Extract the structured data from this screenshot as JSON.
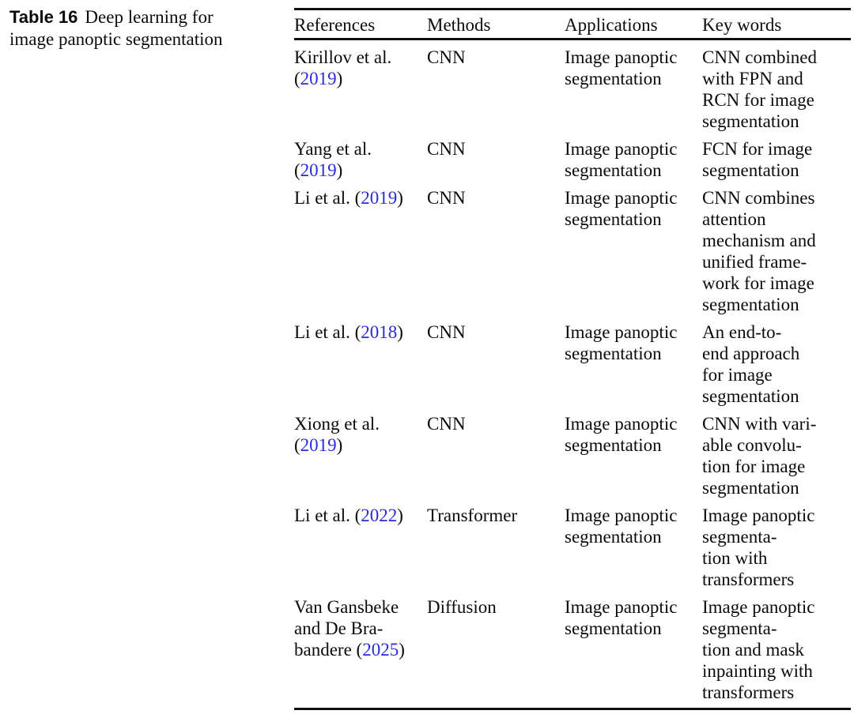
{
  "caption": {
    "label": "Table 16",
    "text": "Deep learning for\nimage panoptic segmentation"
  },
  "colors": {
    "text": "#0b0b0b",
    "rule": "#111111",
    "citation_link_blue": "#2a2ae0",
    "background": "#ffffff"
  },
  "table": {
    "columns": [
      "References",
      "Methods",
      "Applications",
      "Key words"
    ],
    "rows": [
      {
        "ref_pre": "Kirillov et al.\n(",
        "year": "2019",
        "ref_post": ")",
        "method": "CNN",
        "application": "Image panoptic\nsegmentation",
        "keywords": "CNN combined\nwith FPN and\nRCN for image\nsegmentation"
      },
      {
        "ref_pre": "Yang et al.\n(",
        "year": "2019",
        "ref_post": ")",
        "method": "CNN",
        "application": "Image panoptic\nsegmentation",
        "keywords": "FCN for image\nsegmentation"
      },
      {
        "ref_pre": "Li et al. (",
        "year": "2019",
        "ref_post": ")",
        "method": "CNN",
        "application": "Image panoptic\nsegmentation",
        "keywords": "CNN combines\nattention\nmechanism and\nunified frame-\nwork for image\nsegmentation"
      },
      {
        "ref_pre": "Li et al. (",
        "year": "2018",
        "ref_post": ")",
        "method": "CNN",
        "application": "Image panoptic\nsegmentation",
        "keywords": "An end-to-\nend approach\nfor image\nsegmentation"
      },
      {
        "ref_pre": "Xiong et al.\n(",
        "year": "2019",
        "ref_post": ")",
        "method": "CNN",
        "application": "Image panoptic\nsegmentation",
        "keywords": "CNN with vari-\nable convolu-\ntion for image\nsegmentation"
      },
      {
        "ref_pre": "Li et al. (",
        "year": "2022",
        "ref_post": ")",
        "method": "Transformer",
        "application": "Image panoptic\nsegmentation",
        "keywords": "Image panoptic\nsegmenta-\ntion with\ntransformers"
      },
      {
        "ref_pre": "Van Gansbeke\nand De Bra-\nbandere (",
        "year": "2025",
        "ref_post": ")",
        "method": "Diffusion",
        "application": "Image panoptic\nsegmentation",
        "keywords": "Image panoptic\nsegmenta-\ntion and mask\ninpainting with\ntransformers"
      }
    ]
  }
}
